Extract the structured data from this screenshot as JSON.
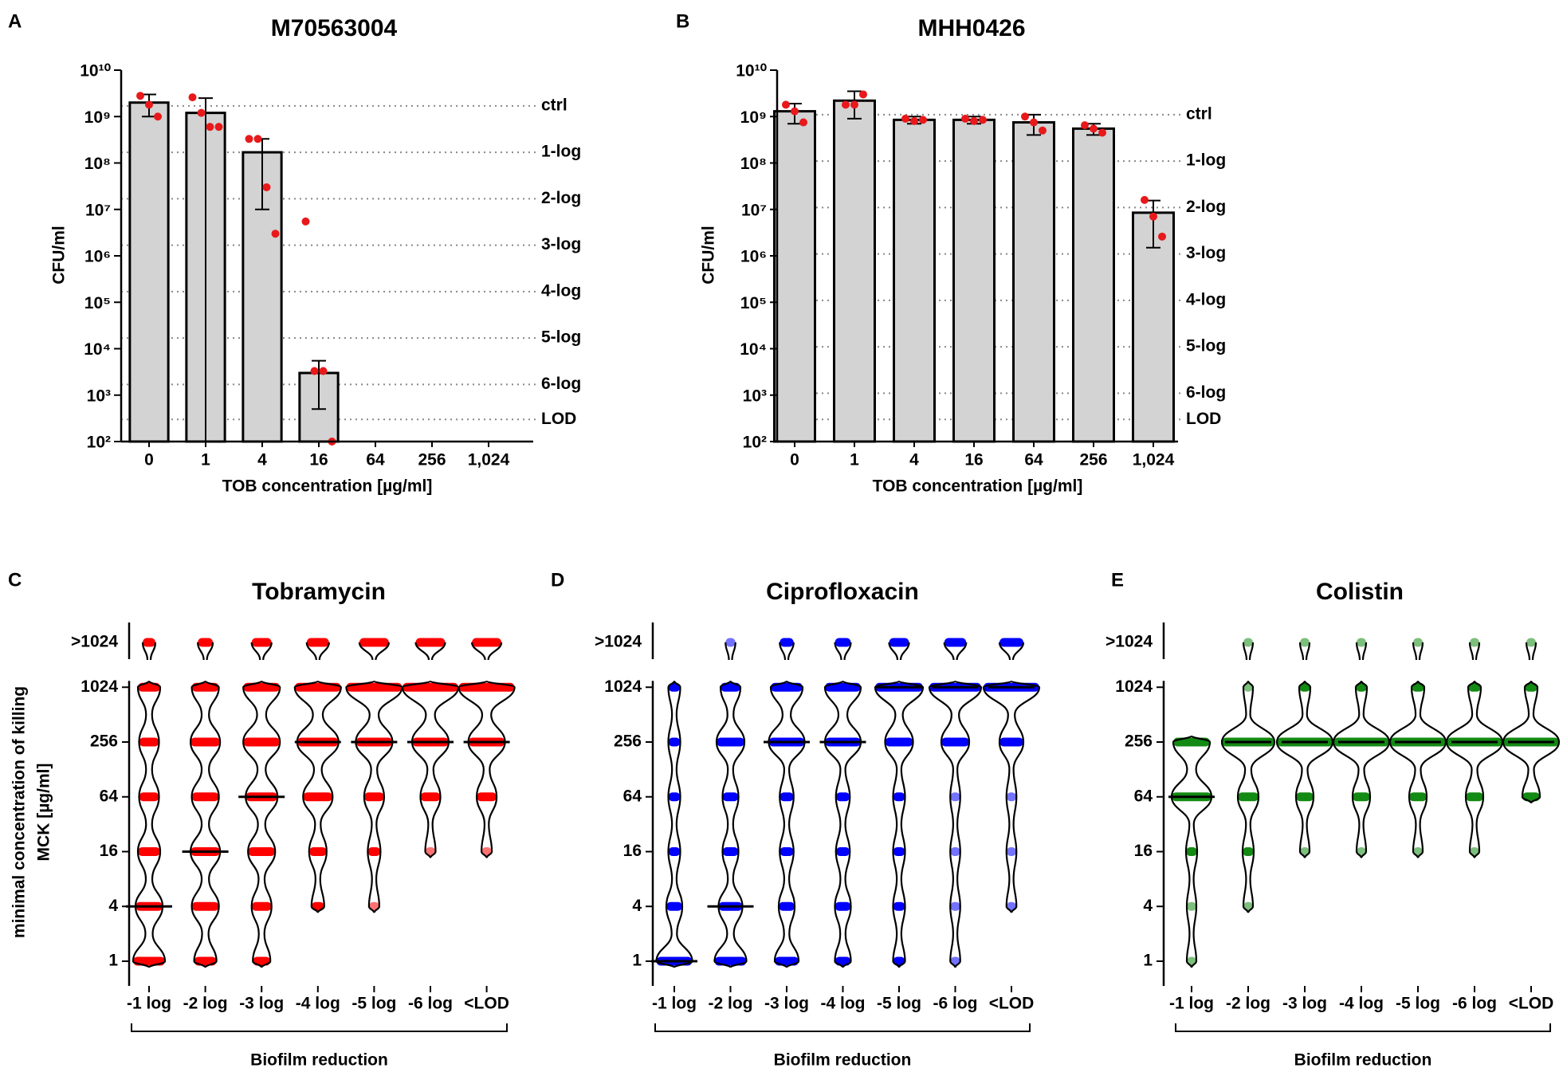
{
  "chart_data": [
    {
      "type": "bar",
      "panel": "A",
      "title": "M70563004",
      "ylabel": "CFU/ml",
      "xlabel": "TOB concentration [µg/ml]",
      "log_scale": true,
      "color": "#d3d3d3",
      "point_color": "#e8191b",
      "categories": [
        "0",
        "1",
        "4",
        "16",
        "64",
        "256",
        "1,024"
      ],
      "values": [
        2000000000,
        1200000000,
        170000000,
        3000,
        null,
        null,
        null
      ],
      "errors": [
        1000000000,
        1300000000,
        160000000,
        2500,
        null,
        null,
        null
      ],
      "replicates": [
        [
          2800000000,
          1800000000,
          1000000000
        ],
        [
          2600000000,
          1200000000,
          600000000,
          600000000
        ],
        [
          330000000,
          330000000,
          30000000,
          3000000
        ],
        [
          5500000,
          3300,
          3300,
          100
        ],
        [],
        [],
        []
      ],
      "reference_lines": [
        {
          "value": 1700000000,
          "label": "ctrl"
        },
        {
          "value": 170000000,
          "label": "1-log"
        },
        {
          "value": 17000000,
          "label": "2-log"
        },
        {
          "value": 1700000,
          "label": "3-log"
        },
        {
          "value": 170000,
          "label": "4-log"
        },
        {
          "value": 17000,
          "label": "5-log"
        },
        {
          "value": 1700,
          "label": "6-log"
        },
        {
          "value": 300,
          "label": "LOD"
        }
      ],
      "ylim": [
        100,
        10000000000
      ],
      "yticks": [
        {
          "value": 100,
          "label": "10²"
        },
        {
          "value": 1000,
          "label": "10³"
        },
        {
          "value": 10000,
          "label": "10⁴"
        },
        {
          "value": 100000,
          "label": "10⁵"
        },
        {
          "value": 1000000,
          "label": "10⁶"
        },
        {
          "value": 10000000,
          "label": "10⁷"
        },
        {
          "value": 100000000,
          "label": "10⁸"
        },
        {
          "value": 1000000000,
          "label": "10⁹"
        },
        {
          "value": 10000000000,
          "label": "10¹⁰"
        }
      ]
    },
    {
      "type": "bar",
      "panel": "B",
      "title": "MHH0426",
      "ylabel": "CFU/ml",
      "xlabel": "TOB concentration [µg/ml]",
      "log_scale": true,
      "color": "#d3d3d3",
      "point_color": "#e8191b",
      "categories": [
        "0",
        "1",
        "4",
        "16",
        "64",
        "256",
        "1,024"
      ],
      "values": [
        1300000000,
        2200000000,
        850000000,
        850000000,
        750000000,
        550000000,
        8500000
      ],
      "errors": [
        600000000,
        1300000000,
        150000000,
        150000000,
        350000000,
        150000000,
        7000000
      ],
      "replicates": [
        [
          1800000000,
          1300000000,
          750000000
        ],
        [
          1800000000,
          1800000000,
          3000000000
        ],
        [
          900000000,
          800000000,
          850000000
        ],
        [
          900000000,
          800000000,
          850000000
        ],
        [
          1000000000,
          750000000,
          500000000
        ],
        [
          650000000,
          550000000,
          450000000
        ],
        [
          16000000,
          7000000,
          2600000
        ]
      ],
      "reference_lines": [
        {
          "value": 1100000000,
          "label": "ctrl"
        },
        {
          "value": 110000000,
          "label": "1-log"
        },
        {
          "value": 11000000,
          "label": "2-log"
        },
        {
          "value": 1100000,
          "label": "3-log"
        },
        {
          "value": 110000,
          "label": "4-log"
        },
        {
          "value": 11000,
          "label": "5-log"
        },
        {
          "value": 1100,
          "label": "6-log"
        },
        {
          "value": 300,
          "label": "LOD"
        }
      ],
      "ylim": [
        100,
        10000000000
      ],
      "yticks": [
        {
          "value": 100,
          "label": "10²"
        },
        {
          "value": 1000,
          "label": "10³"
        },
        {
          "value": 10000,
          "label": "10⁴"
        },
        {
          "value": 100000,
          "label": "10⁵"
        },
        {
          "value": 1000000,
          "label": "10⁶"
        },
        {
          "value": 10000000,
          "label": "10⁷"
        },
        {
          "value": 100000000,
          "label": "10⁸"
        },
        {
          "value": 1000000000,
          "label": "10⁹"
        },
        {
          "value": 10000000000,
          "label": "10¹⁰"
        }
      ]
    },
    {
      "type": "violin",
      "panel": "C",
      "title": "Tobramycin",
      "ylabel": [
        "minimal concentration of killing",
        "MCK [µg/ml]"
      ],
      "xlabel": "Biofilm reduction",
      "color": "#ff0000",
      "categories": [
        "-1 log",
        "-2 log",
        "-3 log",
        "-4 log",
        "-5 log",
        "-6 log",
        "<LOD"
      ],
      "yticks": [
        1,
        4,
        16,
        64,
        256,
        1024,
        {
          "value": 2048,
          "label": ">1024"
        }
      ],
      "counts": [
        [
          10,
          8,
          6,
          5,
          5,
          6,
          2
        ],
        [
          6,
          8,
          9,
          8,
          9,
          8,
          3
        ],
        [
          4,
          5,
          8,
          10,
          12,
          12,
          5
        ],
        [
          0,
          2,
          4,
          9,
          14,
          16,
          6
        ],
        [
          0,
          1,
          2,
          5,
          12,
          20,
          9
        ],
        [
          0,
          0,
          1,
          5,
          12,
          20,
          9
        ],
        [
          0,
          0,
          1,
          5,
          12,
          20,
          9
        ]
      ],
      "medians": [
        4,
        16,
        64,
        256,
        256,
        256,
        256
      ]
    },
    {
      "type": "violin",
      "panel": "D",
      "title": "Ciprofloxacin",
      "xlabel": "Biofilm reduction",
      "color": "#0000ff",
      "categories": [
        "-1 log",
        "-2 log",
        "-3 log",
        "-4 log",
        "-5 log",
        "-6 log",
        "<LOD"
      ],
      "yticks": [
        1,
        4,
        16,
        64,
        256,
        1024,
        {
          "value": 2048,
          "label": ">1024"
        }
      ],
      "counts": [
        [
          14,
          4,
          2,
          2,
          2,
          2,
          0
        ],
        [
          12,
          8,
          4,
          4,
          10,
          6,
          1
        ],
        [
          8,
          4,
          3,
          3,
          14,
          12,
          3
        ],
        [
          4,
          4,
          3,
          3,
          14,
          14,
          4
        ],
        [
          2,
          2,
          2,
          2,
          10,
          20,
          6
        ],
        [
          1,
          1,
          1,
          1,
          10,
          22,
          7
        ],
        [
          0,
          1,
          1,
          1,
          8,
          24,
          8
        ]
      ],
      "medians": [
        1,
        4,
        256,
        256,
        1024,
        1024,
        1024
      ]
    },
    {
      "type": "violin",
      "panel": "E",
      "title": "Colistin",
      "xlabel": "Biofilm reduction",
      "color": "#138a13",
      "categories": [
        "-1 log",
        "-2 log",
        "-3 log",
        "-4 log",
        "-5 log",
        "-6 log",
        "<LOD"
      ],
      "yticks": [
        1,
        4,
        16,
        64,
        256,
        1024,
        {
          "value": 2048,
          "label": ">1024"
        }
      ],
      "counts": [
        [
          1,
          1,
          2,
          20,
          18,
          0,
          0
        ],
        [
          0,
          1,
          2,
          8,
          28,
          1,
          1
        ],
        [
          0,
          0,
          1,
          6,
          30,
          2,
          1
        ],
        [
          0,
          0,
          1,
          6,
          30,
          2,
          1
        ],
        [
          0,
          0,
          1,
          6,
          30,
          3,
          1
        ],
        [
          0,
          0,
          1,
          6,
          30,
          3,
          1
        ],
        [
          0,
          0,
          0,
          6,
          30,
          3,
          1
        ]
      ],
      "medians": [
        64,
        256,
        256,
        256,
        256,
        256,
        256
      ]
    }
  ]
}
